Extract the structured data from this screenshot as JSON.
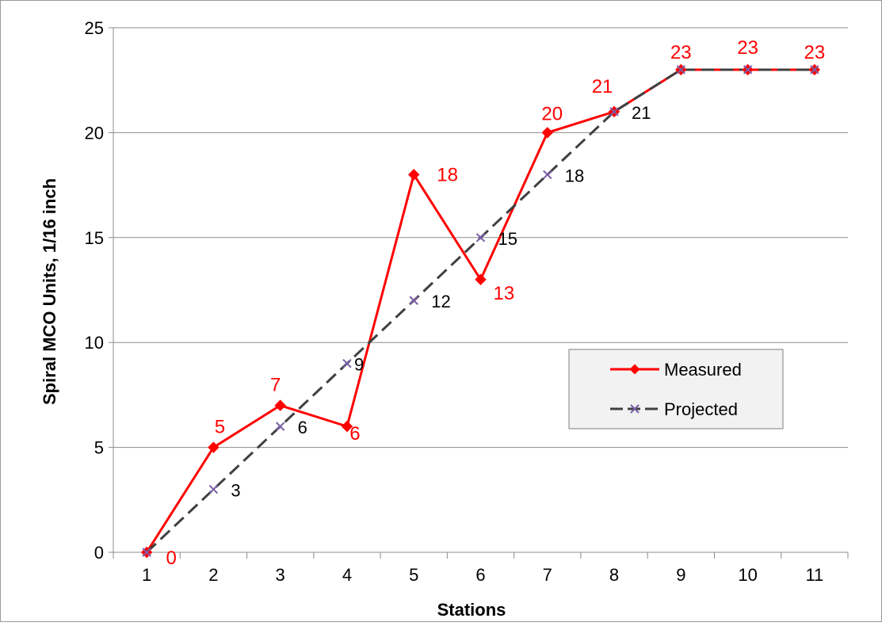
{
  "chart_data": {
    "type": "line",
    "categories": [
      "1",
      "2",
      "3",
      "4",
      "5",
      "6",
      "7",
      "8",
      "9",
      "10",
      "11"
    ],
    "xlabel": "Stations",
    "ylabel": "Spiral MCO Units,  1/16 inch",
    "ylim": [
      0,
      25
    ],
    "yticks": [
      "0",
      "5",
      "10",
      "15",
      "20",
      "25"
    ],
    "grid": "horizontal",
    "legend_position": "right, middle",
    "series": [
      {
        "name": "Measured",
        "values": [
          0,
          5,
          7,
          6,
          18,
          13,
          20,
          21,
          23,
          23,
          23
        ],
        "color": "#ff0000",
        "marker": "diamond",
        "line_style": "solid",
        "data_labels": [
          "0",
          "5",
          "7",
          "6",
          "18",
          "13",
          "20",
          "21",
          "23",
          "23",
          "23"
        ]
      },
      {
        "name": "Projected",
        "values": [
          0,
          3,
          6,
          9,
          12,
          15,
          18,
          21,
          23,
          23,
          23
        ],
        "color": "#404040",
        "marker_color": "#7b5ea7",
        "marker": "x",
        "line_style": "dashed",
        "data_labels": [
          "",
          "3",
          "6",
          "9",
          "12",
          "15",
          "18",
          "21",
          "",
          "",
          ""
        ]
      }
    ]
  }
}
